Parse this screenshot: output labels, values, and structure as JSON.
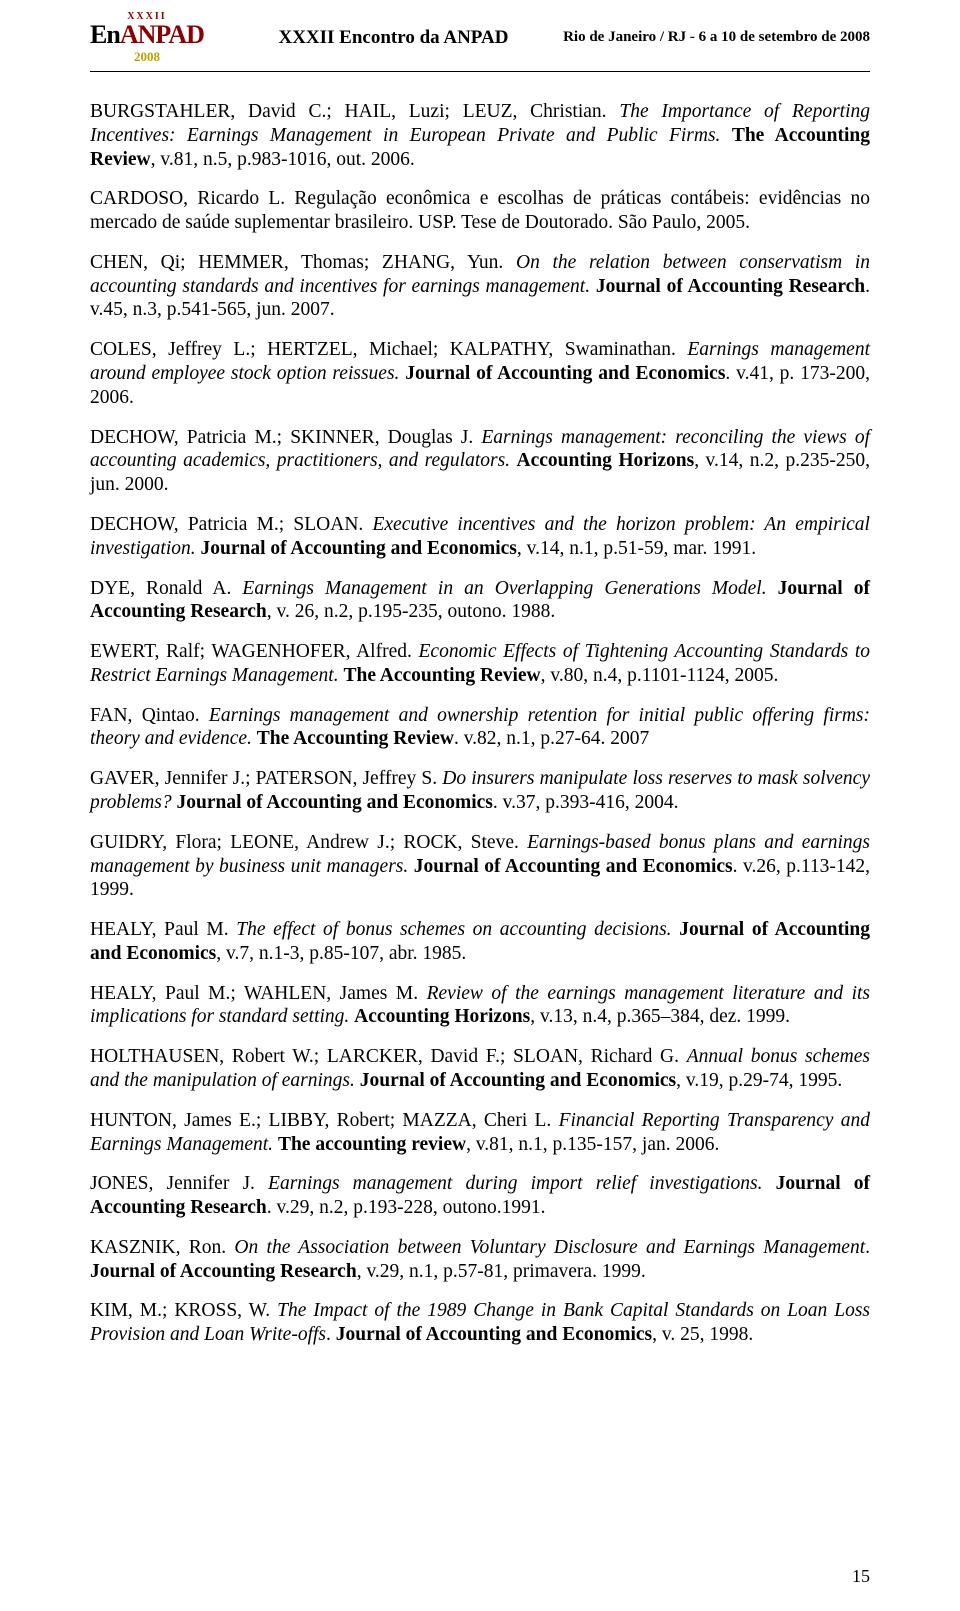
{
  "header": {
    "logo_top": "XXXII",
    "logo_main_1": "En",
    "logo_main_2": "ANPAD",
    "logo_year": "2008",
    "center": "XXXII Encontro da ANPAD",
    "right": "Rio de Janeiro / RJ - 6 a 10 de setembro de 2008"
  },
  "page_number": "15",
  "refs": [
    {
      "pre": "BURGSTAHLER, David C.; HAIL, Luzi;  LEUZ, Christian. ",
      "italic": "The Importance of Reporting Incentives: Earnings Management in European Private and Public Firms.",
      "mid": " ",
      "bold": "The Accounting Review",
      "post": ", v.81, n.5, p.983-1016, out. 2006."
    },
    {
      "pre": "CARDOSO, Ricardo L. ",
      "italic": "",
      "mid": "Regulação econômica e escolhas de práticas contábeis: evidências no mercado de saúde suplementar brasileiro. USP. Tese de Doutorado. São Paulo, 2005.",
      "bold": "",
      "post": ""
    },
    {
      "pre": "CHEN, Qi; HEMMER, Thomas; ZHANG, Yun. ",
      "italic": "On the relation between conservatism in accounting standards and incentives for earnings management.",
      "mid": " ",
      "bold": "Journal of Accounting Research",
      "post": ". v.45, n.3, p.541-565, jun. 2007."
    },
    {
      "pre": "COLES, Jeffrey L.; HERTZEL, Michael; KALPATHY, Swaminathan. ",
      "italic": "Earnings management around employee stock option reissues.",
      "mid": " ",
      "bold": "Journal of Accounting and Economics",
      "post": ". v.41, p. 173-200, 2006."
    },
    {
      "pre": "DECHOW, Patricia M.; SKINNER, Douglas J. ",
      "italic": "Earnings management: reconciling the views of accounting academics, practitioners, and regulators.",
      "mid": " ",
      "bold": "Accounting Horizons",
      "post": ", v.14, n.2, p.235-250, jun. 2000."
    },
    {
      "pre": "DECHOW, Patricia M.; SLOAN. ",
      "italic": "Executive incentives and the horizon problem: An empirical investigation.",
      "mid": " ",
      "bold": "Journal of Accounting and Economics",
      "post": ", v.14, n.1, p.51-59, mar. 1991."
    },
    {
      "pre": "DYE, Ronald A. ",
      "italic": "Earnings Management in an Overlapping Generations Model.",
      "mid": " ",
      "bold": "Journal of Accounting Research",
      "post": ", v. 26, n.2, p.195-235, outono. 1988."
    },
    {
      "pre": "EWERT, Ralf; WAGENHOFER, Alfred. ",
      "italic": "Economic Effects of Tightening Accounting Standards to Restrict Earnings Management.",
      "mid": " ",
      "bold": "The Accounting Review",
      "post": ", v.80, n.4, p.1101-1124, 2005."
    },
    {
      "pre": "FAN, Qintao. ",
      "italic": "Earnings management and ownership retention for initial public offering firms: theory and evidence.",
      "mid": " ",
      "bold": "The Accounting Review",
      "post": ". v.82, n.1, p.27-64. 2007"
    },
    {
      "pre": "GAVER, Jennifer J.; PATERSON, Jeffrey S. ",
      "italic": "Do insurers manipulate loss reserves to mask solvency problems?",
      "mid": " ",
      "bold": "Journal of Accounting and Economics",
      "post": ". v.37, p.393-416, 2004."
    },
    {
      "pre": "GUIDRY, Flora; LEONE, Andrew J.; ROCK, Steve. ",
      "italic": "Earnings-based bonus plans and earnings management by business unit managers.",
      "mid": " ",
      "bold": "Journal of Accounting and Economics",
      "post": ". v.26, p.113-142, 1999."
    },
    {
      "pre": "HEALY, Paul M. ",
      "italic": "The effect of bonus schemes on accounting decisions.",
      "mid": " ",
      "bold": "Journal of Accounting and Economics",
      "post": ", v.7, n.1-3, p.85-107, abr. 1985."
    },
    {
      "pre": "HEALY, Paul M.; WAHLEN, James M. ",
      "italic": "Review of the earnings management literature and its implications for standard setting.",
      "mid": " ",
      "bold": "Accounting Horizons",
      "post": ", v.13, n.4, p.365–384, dez. 1999."
    },
    {
      "pre": "HOLTHAUSEN, Robert W.; LARCKER, David F.; SLOAN, Richard G.  ",
      "italic": "Annual bonus schemes and the manipulation of earnings.",
      "mid": " ",
      "bold": "Journal of Accounting and Economics",
      "post": ", v.19, p.29-74, 1995."
    },
    {
      "pre": "HUNTON, James E.; LIBBY, Robert; MAZZA, Cheri L. ",
      "italic": "Financial Reporting Transparency and Earnings Management.",
      "mid": " ",
      "bold": "The accounting review",
      "post": ", v.81, n.1, p.135-157, jan. 2006."
    },
    {
      "pre": "JONES, Jennifer J. ",
      "italic": "Earnings management during import relief investigations.",
      "mid": " ",
      "bold": "Journal of Accounting Research",
      "post": ". v.29, n.2, p.193-228, outono.1991."
    },
    {
      "pre": "KASZNIK, Ron. ",
      "italic": "On the Association between Voluntary Disclosure and Earnings Management",
      "mid": ". ",
      "bold": "Journal of Accounting Research",
      "post": ", v.29, n.1, p.57-81, primavera. 1999."
    },
    {
      "pre": "KIM, M.; KROSS, W. ",
      "italic": "The Impact of the 1989 Change in Bank Capital Standards on Loan Loss Provision and Loan Write-offs",
      "mid": ". ",
      "bold": "Journal of Accounting and Economics",
      "post": ", v. 25, 1998."
    }
  ]
}
